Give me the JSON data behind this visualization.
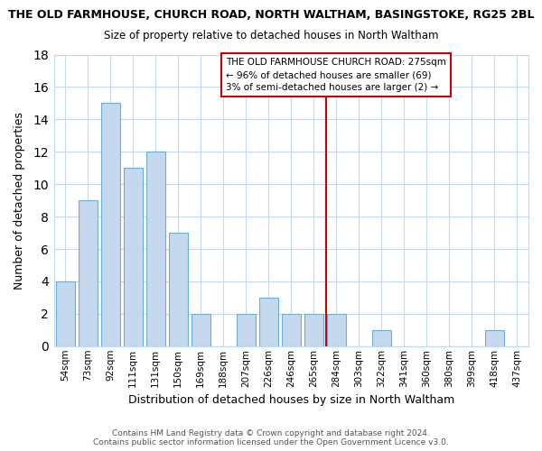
{
  "title": "THE OLD FARMHOUSE, CHURCH ROAD, NORTH WALTHAM, BASINGSTOKE, RG25 2BL",
  "subtitle": "Size of property relative to detached houses in North Waltham",
  "xlabel": "Distribution of detached houses by size in North Waltham",
  "ylabel": "Number of detached properties",
  "bin_labels": [
    "54sqm",
    "73sqm",
    "92sqm",
    "111sqm",
    "131sqm",
    "150sqm",
    "169sqm",
    "188sqm",
    "207sqm",
    "226sqm",
    "246sqm",
    "265sqm",
    "284sqm",
    "303sqm",
    "322sqm",
    "341sqm",
    "360sqm",
    "380sqm",
    "399sqm",
    "418sqm",
    "437sqm"
  ],
  "bar_heights": [
    4,
    9,
    15,
    11,
    12,
    7,
    2,
    0,
    2,
    3,
    2,
    2,
    2,
    0,
    1,
    0,
    0,
    0,
    0,
    1,
    0
  ],
  "bar_color": "#c5d8ee",
  "bar_edge_color": "#6baed6",
  "marker_color": "#cc0000",
  "annotation_title": "THE OLD FARMHOUSE CHURCH ROAD: 275sqm",
  "annotation_line1": "← 96% of detached houses are smaller (69)",
  "annotation_line2": "3% of semi-detached houses are larger (2) →",
  "ylim": [
    0,
    18
  ],
  "yticks": [
    0,
    2,
    4,
    6,
    8,
    10,
    12,
    14,
    16,
    18
  ],
  "footer": "Contains HM Land Registry data © Crown copyright and database right 2024.\nContains public sector information licensed under the Open Government Licence v3.0.",
  "bg_color": "#ffffff",
  "plot_bg_color": "#ffffff",
  "grid_color": "#c8d8ec"
}
